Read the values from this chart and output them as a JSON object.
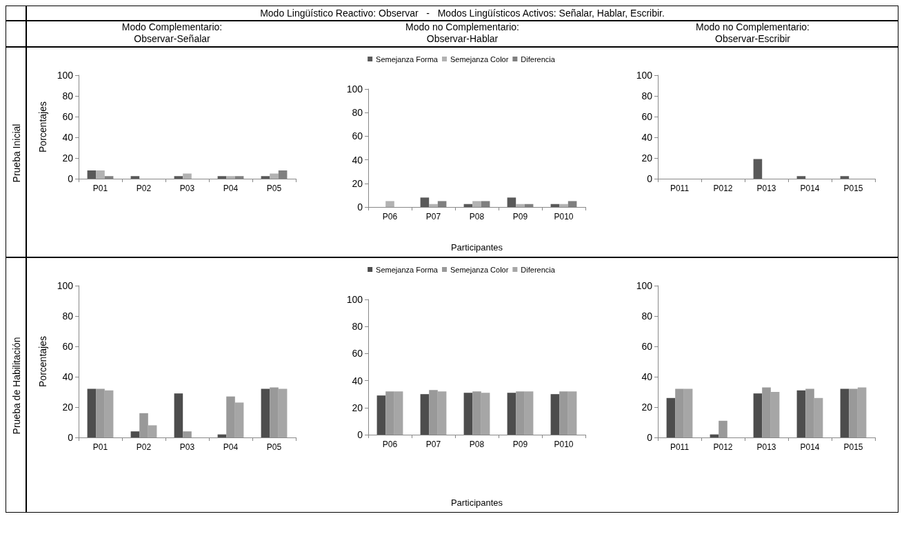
{
  "chart_data": [
    {
      "type": "bar",
      "title": "Modo Complementario:\nObservar-Señalar",
      "ylabel": "Porcentajes",
      "annotations": [
        "Modo Lingüístico Reactivo: Observar   -   Modos Lingüísticos Activos: Señalar, Hablar, Escribir.",
        "Prueba Inicial"
      ],
      "categories": [
        "P01",
        "P02",
        "P03",
        "P04",
        "P05"
      ],
      "series": [
        {
          "color": "#595959",
          "values": [
            8,
            2.5,
            2.5,
            2.5,
            2.5
          ]
        },
        {
          "color": "#b2b2b2",
          "values": [
            8,
            0,
            5,
            2.5,
            5
          ]
        },
        {
          "color": "#7f7f7f",
          "values": [
            2.5,
            0,
            0,
            2.5,
            8
          ]
        }
      ],
      "ylim": [
        0,
        100
      ],
      "yticks": [
        0,
        20,
        40,
        60,
        80,
        100
      ],
      "grid": false,
      "legend": false
    },
    {
      "type": "bar",
      "title": "Modo no Complementario:\nObservar-Hablar",
      "xlabel": "Participantes",
      "categories": [
        "P06",
        "P07",
        "P08",
        "P09",
        "P010"
      ],
      "series": [
        {
          "name": "Semejanza Forma",
          "color": "#595959",
          "values": [
            0,
            8,
            2.5,
            8,
            2.5
          ]
        },
        {
          "name": "Semejanza Color",
          "color": "#b2b2b2",
          "values": [
            5,
            2.5,
            5,
            2.5,
            2.5
          ]
        },
        {
          "name": "Diferencia",
          "color": "#7f7f7f",
          "values": [
            0,
            5,
            5,
            2.5,
            5
          ]
        }
      ],
      "ylim": [
        0,
        100
      ],
      "yticks": [
        0,
        20,
        40,
        60,
        80,
        100
      ],
      "grid": false,
      "legend": "top"
    },
    {
      "type": "bar",
      "title": "Modo no Complementario:\nObservar-Escribir",
      "categories": [
        "P011",
        "P012",
        "P013",
        "P014",
        "P015"
      ],
      "series": [
        {
          "color": "#595959",
          "values": [
            0,
            0,
            19,
            2.5,
            2.5
          ]
        },
        {
          "color": "#b2b2b2",
          "values": [
            0,
            0,
            0,
            0,
            0
          ]
        },
        {
          "color": "#7f7f7f",
          "values": [
            0,
            0,
            0,
            0,
            0
          ]
        }
      ],
      "ylim": [
        0,
        100
      ],
      "yticks": [
        0,
        20,
        40,
        60,
        80,
        100
      ],
      "grid": false,
      "legend": false
    },
    {
      "type": "bar",
      "ylabel": "Porcentajes",
      "annotations": [
        "Prueba de Habilitación"
      ],
      "categories": [
        "P01",
        "P02",
        "P03",
        "P04",
        "P05"
      ],
      "series": [
        {
          "color": "#4d4d4d",
          "values": [
            32,
            4,
            29,
            2,
            32
          ]
        },
        {
          "color": "#999999",
          "values": [
            32,
            16,
            4,
            27,
            33
          ]
        },
        {
          "color": "#a6a6a6",
          "values": [
            31,
            8,
            0,
            23,
            32
          ]
        }
      ],
      "ylim": [
        0,
        100
      ],
      "yticks": [
        0,
        20,
        40,
        60,
        80,
        100
      ],
      "grid": false,
      "legend": false
    },
    {
      "type": "bar",
      "xlabel": "Participantes",
      "categories": [
        "P06",
        "P07",
        "P08",
        "P09",
        "P010"
      ],
      "series": [
        {
          "name": "Semejanza Forma",
          "color": "#4d4d4d",
          "values": [
            29,
            30,
            31,
            31,
            30
          ]
        },
        {
          "name": "Semejanza Color",
          "color": "#999999",
          "values": [
            32,
            33,
            32,
            32,
            32
          ]
        },
        {
          "name": "Diferencia",
          "color": "#a6a6a6",
          "values": [
            32,
            32,
            31,
            32,
            32
          ]
        }
      ],
      "ylim": [
        0,
        100
      ],
      "yticks": [
        0,
        20,
        40,
        60,
        80,
        100
      ],
      "grid": false,
      "legend": "top"
    },
    {
      "type": "bar",
      "categories": [
        "P011",
        "P012",
        "P013",
        "P014",
        "P015"
      ],
      "series": [
        {
          "color": "#4d4d4d",
          "values": [
            26,
            2,
            29,
            31,
            32
          ]
        },
        {
          "color": "#999999",
          "values": [
            32,
            11,
            33,
            32,
            32
          ]
        },
        {
          "color": "#a6a6a6",
          "values": [
            32,
            0,
            30,
            26,
            33
          ]
        }
      ],
      "ylim": [
        0,
        100
      ],
      "yticks": [
        0,
        20,
        40,
        60,
        80,
        100
      ],
      "grid": false,
      "legend": false
    }
  ]
}
